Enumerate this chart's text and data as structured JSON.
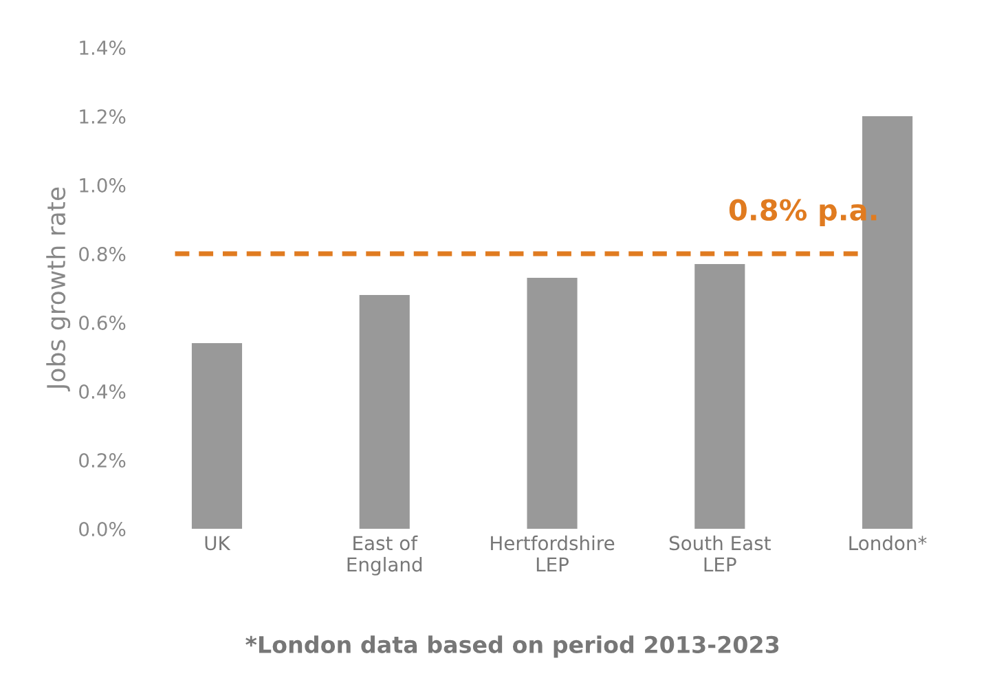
{
  "chart_data": {
    "type": "bar",
    "ylabel": "Jobs growth rate",
    "categories": [
      "UK",
      "East of\nEngland",
      "Hertfordshire\nLEP",
      "South East\nLEP",
      "London*"
    ],
    "values": [
      0.54,
      0.68,
      0.73,
      0.77,
      1.2
    ],
    "color": "#999999",
    "ylim": [
      0,
      1.4
    ],
    "yticks": [
      {
        "value": 0,
        "label": "0.0%"
      },
      {
        "value": 0.2,
        "label": "0.2%"
      },
      {
        "value": 0.4,
        "label": "0.4%"
      },
      {
        "value": 0.6,
        "label": "0.6%"
      },
      {
        "value": 0.8,
        "label": "0.8%"
      },
      {
        "value": 1.0,
        "label": "1.0%"
      },
      {
        "value": 1.2,
        "label": "1.2%"
      },
      {
        "value": 1.4,
        "label": "1.4%"
      }
    ],
    "ref_lines": [
      {
        "axis": "y",
        "value": 0.8,
        "label": "0.8% p.a.",
        "color": "#e07b20",
        "line_style": "dashed"
      }
    ],
    "annotations": [
      "*London data based on period 2013-2023"
    ],
    "grid": false
  }
}
